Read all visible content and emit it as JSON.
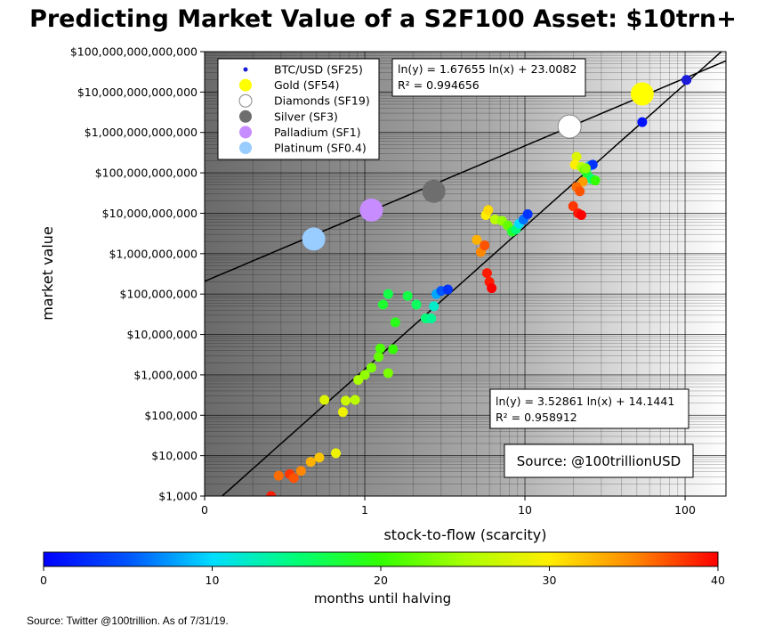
{
  "title": "Predicting Market Value of a S2F100 Asset: $10trn+",
  "source_note": "Source: Twitter @100trillion. As of 7/31/19.",
  "chart_data": {
    "type": "scatter",
    "xlabel": "stock-to-flow (scarcity)",
    "ylabel": "market value",
    "x_scale": "log",
    "y_scale": "log",
    "xlim": [
      0.1,
      180
    ],
    "ylim": [
      1000,
      100000000000000
    ],
    "x_ticks": [
      {
        "v": 0.1,
        "label": "0"
      },
      {
        "v": 1,
        "label": "1"
      },
      {
        "v": 10,
        "label": "10"
      },
      {
        "v": 100,
        "label": "100"
      }
    ],
    "y_ticks": [
      {
        "v": 1000,
        "label": "$1,000"
      },
      {
        "v": 10000,
        "label": "$10,000"
      },
      {
        "v": 100000,
        "label": "$100,000"
      },
      {
        "v": 1000000,
        "label": "$1,000,000"
      },
      {
        "v": 10000000,
        "label": "$10,000,000"
      },
      {
        "v": 100000000,
        "label": "$100,000,000"
      },
      {
        "v": 1000000000,
        "label": "$1,000,000,000"
      },
      {
        "v": 10000000000,
        "label": "$10,000,000,000"
      },
      {
        "v": 100000000000,
        "label": "$100,000,000,000"
      },
      {
        "v": 1000000000000,
        "label": "$1,000,000,000,000"
      },
      {
        "v": 10000000000000,
        "label": "$10,000,000,000,000"
      },
      {
        "v": 100000000000000,
        "label": "$100,000,000,000,000"
      }
    ],
    "legend": [
      {
        "label": "BTC/USD (SF25)",
        "color": "#1c1cd6",
        "size": "small"
      },
      {
        "label": "Gold (SF54)",
        "color": "#ffff00",
        "size": "large"
      },
      {
        "label": "Diamonds (SF19)",
        "color": "#ffffff",
        "size": "large"
      },
      {
        "label": "Silver (SF3)",
        "color": "#6e6e6e",
        "size": "large"
      },
      {
        "label": "Palladium (SF1)",
        "color": "#c78cff",
        "size": "large"
      },
      {
        "label": "Platinum (SF0.4)",
        "color": "#99ccff",
        "size": "large"
      }
    ],
    "assets": [
      {
        "name": "Gold (SF54)",
        "x": 54,
        "y": 9000000000000,
        "color": "#ffff00"
      },
      {
        "name": "Diamonds (SF19)",
        "x": 19,
        "y": 1400000000000,
        "color": "#ffffff"
      },
      {
        "name": "Silver (SF3)",
        "x": 2.7,
        "y": 35000000000,
        "color": "#6e6e6e"
      },
      {
        "name": "Palladium (SF1)",
        "x": 1.1,
        "y": 12000000000,
        "color": "#c78cff"
      },
      {
        "name": "Platinum (SF0.4)",
        "x": 0.48,
        "y": 2300000000,
        "color": "#99ccff"
      },
      {
        "name": "BTC/USD (SF25)",
        "x": 102,
        "y": 20000000000000,
        "color": "#1c1cd6"
      }
    ],
    "fit_lines": [
      {
        "equation": "ln(y) = 1.67655 ln(x) + 23.0082",
        "r2": "R² = 0.994656",
        "a": 1.67655,
        "b": 23.0082
      },
      {
        "equation": "ln(y) = 3.52861 ln(x) + 14.1441",
        "r2": "R² = 0.958912",
        "a": 3.52861,
        "b": 14.1441
      }
    ],
    "source_box": "Source: @100trillionUSD",
    "colorbar": {
      "label": "months until halving",
      "min": 0,
      "max": 40,
      "ticks": [
        0,
        10,
        20,
        30,
        40
      ]
    },
    "btc_points": [
      {
        "x": 0.26,
        "y": 1000,
        "m": 39
      },
      {
        "x": 0.29,
        "y": 3200,
        "m": 36
      },
      {
        "x": 0.34,
        "y": 3500,
        "m": 38
      },
      {
        "x": 0.36,
        "y": 2800,
        "m": 37
      },
      {
        "x": 0.4,
        "y": 4200,
        "m": 35
      },
      {
        "x": 0.46,
        "y": 7000,
        "m": 33
      },
      {
        "x": 0.52,
        "y": 9000,
        "m": 32
      },
      {
        "x": 0.56,
        "y": 240000,
        "m": 28
      },
      {
        "x": 0.66,
        "y": 11500,
        "m": 29
      },
      {
        "x": 0.73,
        "y": 120000,
        "m": 29
      },
      {
        "x": 0.76,
        "y": 230000,
        "m": 27
      },
      {
        "x": 0.87,
        "y": 240000,
        "m": 26
      },
      {
        "x": 0.91,
        "y": 750000,
        "m": 25
      },
      {
        "x": 1.0,
        "y": 1000000,
        "m": 24
      },
      {
        "x": 1.1,
        "y": 1500000,
        "m": 23
      },
      {
        "x": 1.22,
        "y": 2800000,
        "m": 22
      },
      {
        "x": 1.25,
        "y": 4500000,
        "m": 21
      },
      {
        "x": 1.5,
        "y": 4300000,
        "m": 20
      },
      {
        "x": 1.4,
        "y": 1100000,
        "m": 23
      },
      {
        "x": 1.55,
        "y": 20000000,
        "m": 19
      },
      {
        "x": 1.3,
        "y": 55000000,
        "m": 18
      },
      {
        "x": 1.4,
        "y": 100000000,
        "m": 17
      },
      {
        "x": 1.85,
        "y": 90000000,
        "m": 17
      },
      {
        "x": 2.1,
        "y": 55000000,
        "m": 16
      },
      {
        "x": 2.4,
        "y": 25000000,
        "m": 15
      },
      {
        "x": 2.6,
        "y": 25000000,
        "m": 14
      },
      {
        "x": 2.7,
        "y": 50000000,
        "m": 12
      },
      {
        "x": 2.8,
        "y": 100000000,
        "m": 8
      },
      {
        "x": 3.0,
        "y": 120000000,
        "m": 5
      },
      {
        "x": 3.3,
        "y": 130000000,
        "m": 3
      },
      {
        "x": 5.0,
        "y": 2200000000,
        "m": 33
      },
      {
        "x": 5.3,
        "y": 1100000000,
        "m": 35
      },
      {
        "x": 5.6,
        "y": 1600000000,
        "m": 37
      },
      {
        "x": 5.8,
        "y": 330000000,
        "m": 39
      },
      {
        "x": 6.0,
        "y": 200000000,
        "m": 39
      },
      {
        "x": 6.2,
        "y": 140000000,
        "m": 40
      },
      {
        "x": 5.7,
        "y": 9000000000,
        "m": 30
      },
      {
        "x": 5.9,
        "y": 12000000000,
        "m": 31
      },
      {
        "x": 6.5,
        "y": 7000000000,
        "m": 26
      },
      {
        "x": 7.2,
        "y": 6500000000,
        "m": 24
      },
      {
        "x": 7.8,
        "y": 5000000000,
        "m": 22
      },
      {
        "x": 8.3,
        "y": 3500000000,
        "m": 18
      },
      {
        "x": 8.8,
        "y": 4000000000,
        "m": 15
      },
      {
        "x": 9.2,
        "y": 5500000000,
        "m": 10
      },
      {
        "x": 9.8,
        "y": 7000000000,
        "m": 6
      },
      {
        "x": 10.4,
        "y": 9500000000,
        "m": 3
      },
      {
        "x": 21,
        "y": 250000000000,
        "m": 28
      },
      {
        "x": 20.5,
        "y": 160000000000,
        "m": 30
      },
      {
        "x": 22.5,
        "y": 140000000000,
        "m": 26
      },
      {
        "x": 23.5,
        "y": 120000000000,
        "m": 22
      },
      {
        "x": 24.5,
        "y": 90000000000,
        "m": 18
      },
      {
        "x": 26,
        "y": 70000000000,
        "m": 15
      },
      {
        "x": 27.5,
        "y": 65000000000,
        "m": 20
      },
      {
        "x": 25.5,
        "y": 150000000000,
        "m": 8
      },
      {
        "x": 26.5,
        "y": 160000000000,
        "m": 3
      },
      {
        "x": 23,
        "y": 60000000000,
        "m": 34
      },
      {
        "x": 21,
        "y": 45000000000,
        "m": 36
      },
      {
        "x": 22,
        "y": 35000000000,
        "m": 37
      },
      {
        "x": 20,
        "y": 15000000000,
        "m": 38
      },
      {
        "x": 21.5,
        "y": 10000000000,
        "m": 39
      },
      {
        "x": 22.5,
        "y": 9000000000,
        "m": 40
      },
      {
        "x": 24,
        "y": 130000000000,
        "m": 24
      },
      {
        "x": 54,
        "y": 1800000000000,
        "m": 1
      },
      {
        "x": 102,
        "y": 20000000000000,
        "m": 0
      }
    ]
  }
}
